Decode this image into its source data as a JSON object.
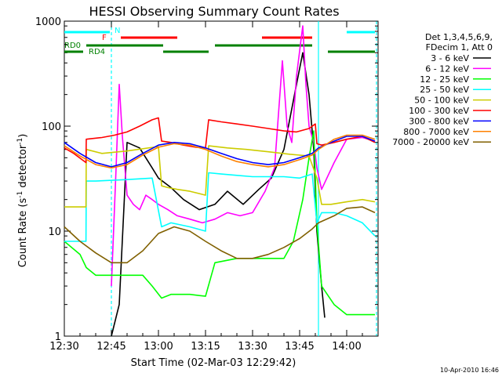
{
  "chart_data": {
    "type": "line",
    "title": "HESSI Observing Summary Count Rates",
    "xlabel": "Start Time (02-Mar-03 12:29:42)",
    "ylabel_main": "Count Rate (s",
    "ylabel_sup1": "-1",
    "ylabel_mid": " detector",
    "ylabel_sup2": "-1",
    "ylabel_end": ")",
    "yscale": "log",
    "ylim": [
      1,
      1000
    ],
    "xlim_minutes": [
      0,
      100
    ],
    "x_unit": "minutes after 12:30",
    "x_ticks": [
      {
        "v": 0,
        "label": "12:30"
      },
      {
        "v": 15,
        "label": "12:45"
      },
      {
        "v": 30,
        "label": "13:00"
      },
      {
        "v": 45,
        "label": "13:15"
      },
      {
        "v": 60,
        "label": "13:30"
      },
      {
        "v": 75,
        "label": "13:45"
      },
      {
        "v": 90,
        "label": "14:00"
      }
    ],
    "y_ticks": [
      {
        "v": 1,
        "label": "1"
      },
      {
        "v": 10,
        "label": "10"
      },
      {
        "v": 100,
        "label": "100"
      },
      {
        "v": 1000,
        "label": "1000"
      }
    ],
    "legend_header": [
      "Det 1,3,4,5,6,9,",
      "FDecim 1, Att 0"
    ],
    "timestamp": "10-Apr-2010 16:46",
    "flag_labels": {
      "n": "N",
      "f": "F",
      "rd0": "RD0",
      "rd4": "RD4"
    },
    "flags": [
      {
        "label": "N",
        "color": "#00ffff",
        "segments": [
          [
            0,
            14.5
          ],
          [
            90,
            99
          ]
        ]
      },
      {
        "label": "F",
        "color": "#ff0000",
        "segments": [
          [
            18,
            36
          ],
          [
            63,
            79
          ]
        ]
      },
      {
        "label": "RD0",
        "color": "#008000",
        "segments": [
          [
            7,
            31.5
          ],
          [
            48,
            79
          ]
        ]
      },
      {
        "label": "RD4",
        "color": "#008000",
        "segments": [
          [
            0,
            6
          ],
          [
            31.5,
            46
          ],
          [
            84,
            99
          ]
        ]
      }
    ],
    "markers": [
      {
        "x": 15,
        "color": "#00ffff",
        "style": "dashed"
      },
      {
        "x": 81,
        "color": "#00ffff",
        "style": "solid"
      },
      {
        "x": 99.5,
        "color": "#00ffff",
        "style": "dashed"
      }
    ],
    "series": [
      {
        "name": "3 - 6 keV",
        "color": "#000000",
        "x": [
          15,
          17.5,
          20,
          24,
          28,
          30,
          34,
          38,
          43,
          48,
          52,
          57,
          62,
          66,
          70,
          74,
          76,
          78,
          79.5,
          80.5,
          82,
          83
        ],
        "y": [
          1,
          2,
          70,
          62,
          40,
          32,
          26,
          20,
          16,
          18,
          24,
          18,
          25,
          32,
          60,
          250,
          500,
          200,
          60,
          10,
          3,
          1.5
        ]
      },
      {
        "name": "6 - 12 keV",
        "color": "#ff00ff",
        "x": [
          15,
          16.5,
          17.5,
          18.5,
          20,
          22,
          24,
          26,
          28,
          30,
          33,
          36,
          40,
          44,
          48,
          52,
          56,
          60,
          64,
          67,
          69.5,
          71,
          72.5,
          74,
          76,
          77,
          78,
          79.5,
          80.5,
          82,
          86,
          90,
          95,
          99
        ],
        "y": [
          3,
          40,
          250,
          80,
          22,
          18,
          16,
          22,
          20,
          18,
          16,
          14,
          13,
          12,
          13,
          15,
          14,
          15,
          24,
          40,
          420,
          100,
          70,
          300,
          900,
          250,
          100,
          70,
          40,
          25,
          45,
          75,
          78,
          72
        ]
      },
      {
        "name": "12 - 25 keV",
        "color": "#00ff00",
        "x": [
          0,
          5,
          7,
          10,
          20,
          25,
          28,
          31,
          34,
          40,
          45,
          48,
          55,
          65,
          70,
          73,
          76,
          78,
          79.5,
          80.5,
          82,
          86,
          90,
          95,
          99
        ],
        "y": [
          8,
          6,
          4.5,
          3.8,
          3.8,
          3.8,
          3,
          2.3,
          2.5,
          2.5,
          2.4,
          5,
          5.5,
          5.5,
          5.5,
          8,
          20,
          50,
          90,
          12,
          3,
          2,
          1.6,
          1.6,
          1.6
        ]
      },
      {
        "name": "25 - 50 keV",
        "color": "#00ffff",
        "x": [
          0,
          6.9,
          7,
          10,
          20,
          28,
          31,
          34,
          40,
          45,
          46,
          50,
          55,
          60,
          65,
          70,
          75,
          79,
          80.5,
          82,
          86,
          90,
          95,
          99
        ],
        "y": [
          8,
          8,
          30,
          30,
          31,
          32,
          11,
          12,
          11,
          10,
          36,
          35,
          34,
          33,
          33,
          33,
          32,
          35,
          12,
          15,
          15,
          14,
          12,
          9
        ]
      },
      {
        "name": "50 - 100 keV",
        "color": "#cccc00",
        "x": [
          0,
          6.9,
          7,
          12,
          20,
          30,
          31,
          33,
          36,
          40,
          45,
          46,
          52,
          58,
          65,
          72,
          78,
          80.5,
          82,
          85,
          90,
          95,
          99
        ],
        "y": [
          17,
          17,
          60,
          55,
          58,
          64,
          27,
          26,
          25,
          24,
          22,
          65,
          62,
          60,
          57,
          54,
          52,
          32,
          18,
          18,
          19,
          20,
          19
        ]
      },
      {
        "name": "100 - 300 keV",
        "color": "#ff0000",
        "x": [
          0,
          3,
          6.9,
          7,
          12,
          16,
          20,
          24,
          28,
          30,
          31,
          34,
          38,
          42,
          45,
          46,
          50,
          55,
          60,
          65,
          70,
          74,
          78,
          80,
          80.5,
          82,
          86,
          90,
          95,
          99
        ],
        "y": [
          62,
          55,
          45,
          75,
          78,
          82,
          88,
          100,
          115,
          120,
          72,
          70,
          66,
          63,
          62,
          115,
          110,
          105,
          100,
          95,
          90,
          88,
          95,
          105,
          68,
          66,
          70,
          75,
          80,
          70
        ]
      },
      {
        "name": "300 - 800 keV",
        "color": "#0000ff",
        "x": [
          0,
          5,
          10,
          15,
          20,
          25,
          30,
          35,
          40,
          45,
          50,
          55,
          60,
          65,
          70,
          75,
          79,
          81,
          86,
          90,
          95,
          99
        ],
        "y": [
          70,
          55,
          45,
          41,
          45,
          55,
          66,
          70,
          68,
          62,
          55,
          49,
          45,
          43,
          45,
          50,
          55,
          62,
          72,
          80,
          80,
          72
        ]
      },
      {
        "name": "800 - 7000 keV",
        "color": "#ff8000",
        "x": [
          0,
          5,
          10,
          15,
          20,
          25,
          30,
          35,
          40,
          45,
          50,
          55,
          60,
          65,
          70,
          75,
          79,
          81,
          86,
          90,
          95,
          99
        ],
        "y": [
          65,
          52,
          43,
          40,
          43,
          53,
          63,
          68,
          66,
          60,
          52,
          46,
          43,
          41,
          43,
          48,
          53,
          60,
          75,
          82,
          82,
          75
        ]
      },
      {
        "name": "7000 - 20000 keV",
        "color": "#806000",
        "x": [
          0,
          5,
          10,
          15,
          20,
          25,
          30,
          35,
          40,
          45,
          50,
          55,
          60,
          65,
          70,
          75,
          79,
          81,
          86,
          90,
          95,
          99
        ],
        "y": [
          11,
          8,
          6.2,
          5,
          5,
          6.5,
          9.5,
          11,
          10,
          8,
          6.5,
          5.5,
          5.5,
          6,
          7,
          8.5,
          10.5,
          12,
          14,
          16.5,
          17,
          15
        ]
      }
    ]
  }
}
